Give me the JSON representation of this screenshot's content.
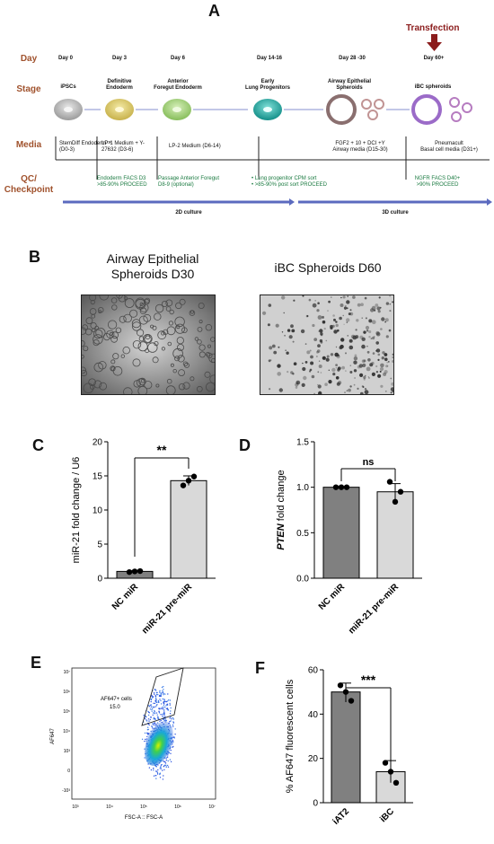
{
  "panelA": {
    "letter": "A",
    "row_labels": {
      "day": "Day",
      "stage": "Stage",
      "media": "Media",
      "qc": "QC/\nCheckpoint"
    },
    "transfection": "Transfection",
    "days": [
      "Day 0",
      "Day 3",
      "Day 6",
      "Day 14-16",
      "Day 28 -30",
      "Day 60+"
    ],
    "stages": [
      "iPSCs",
      "Definitive\nEndoderm",
      "Anterior\nForegut Endoderm",
      "Early\nLung Progenitors",
      "Airway Epithelial\nSpheroids",
      "iBC spheroids"
    ],
    "media": [
      "StemDiff  Endoderm™\n(D0-3)",
      "LP-1 Medium + Y-\n27632 (D3-6)",
      "LP-2 Medium (D6-14)",
      "FGF2 + 10 + DCI +Y\nAirway media  (D15-30)",
      "Pneumacult\nBasal cell media  (D31+)"
    ],
    "qc": [
      "Endoderm  FACS D3\n>85-90% PROCEED",
      "Passage Anterior Foregut\nD8-9 (optional)",
      "•  Lung progenitor CPM sort\n•  >85-90% post sort PROCEED",
      "NGFR FACS D40+\n>90% PROCEED"
    ],
    "culture_2d": "2D culture",
    "culture_3d": "3D culture",
    "colors": {
      "row_label": "#a0522d",
      "arrow": "#5b6abf",
      "transfection_arrow": "#8b1c1c"
    }
  },
  "panelB": {
    "letter": "B",
    "caption_left": "Airway Epithelial\nSpheroids D30",
    "caption_right": "iBC Spheroids D60"
  },
  "panelC": {
    "letter": "C",
    "chart_data": {
      "type": "bar",
      "categories": [
        "NC miR",
        "miR-21 pre-miR"
      ],
      "values": [
        1.0,
        14.3
      ],
      "error": [
        0.1,
        0.7
      ],
      "points": [
        [
          0.9,
          1.0,
          1.05
        ],
        [
          13.6,
          14.3,
          14.9
        ]
      ],
      "ylabel": "miR-21 fold change / U6",
      "ylim": [
        0,
        20
      ],
      "yticks": [
        0,
        5,
        10,
        15,
        20
      ],
      "significance": "**",
      "colors": [
        "#808080",
        "#d9d9d9"
      ]
    }
  },
  "panelD": {
    "letter": "D",
    "chart_data": {
      "type": "bar",
      "categories": [
        "NC miR",
        "miR-21 pre-miR"
      ],
      "values": [
        1.0,
        0.95
      ],
      "error": [
        0.0,
        0.09
      ],
      "points": [
        [
          1.0,
          1.0,
          1.0
        ],
        [
          1.06,
          0.84,
          0.95
        ]
      ],
      "ylabel_italic": "PTEN",
      "ylabel_rest": " fold change",
      "ylim": [
        0.0,
        1.5
      ],
      "yticks": [
        0.0,
        0.5,
        1.0,
        1.5
      ],
      "ytick_labels": [
        "0.0",
        "0.5",
        "1.0",
        "1.5"
      ],
      "significance": "ns",
      "colors": [
        "#808080",
        "#d9d9d9"
      ]
    }
  },
  "panelE": {
    "letter": "E",
    "gate_label": "AF647+ cells",
    "gate_value": "15.0",
    "ylabel": "AF647",
    "xlabel": "FSC-A :: FSC-A",
    "xticks": [
      "10³",
      "10⁴",
      "10⁵",
      "10⁶",
      "10⁷"
    ],
    "yticks": [
      "10⁷",
      "10⁶",
      "10⁵",
      "10⁴",
      "10³",
      "0",
      "-10³"
    ]
  },
  "panelF": {
    "letter": "F",
    "chart_data": {
      "type": "bar",
      "categories": [
        "iAT2",
        "iBC"
      ],
      "values": [
        50,
        14
      ],
      "error": [
        4,
        5
      ],
      "points": [
        [
          53,
          50,
          46
        ],
        [
          18,
          14,
          9
        ]
      ],
      "ylabel": "% AF647 fluorescent cells",
      "ylim": [
        0,
        60
      ],
      "yticks": [
        0,
        20,
        40,
        60
      ],
      "significance": "***",
      "colors": [
        "#808080",
        "#d9d9d9"
      ]
    }
  }
}
